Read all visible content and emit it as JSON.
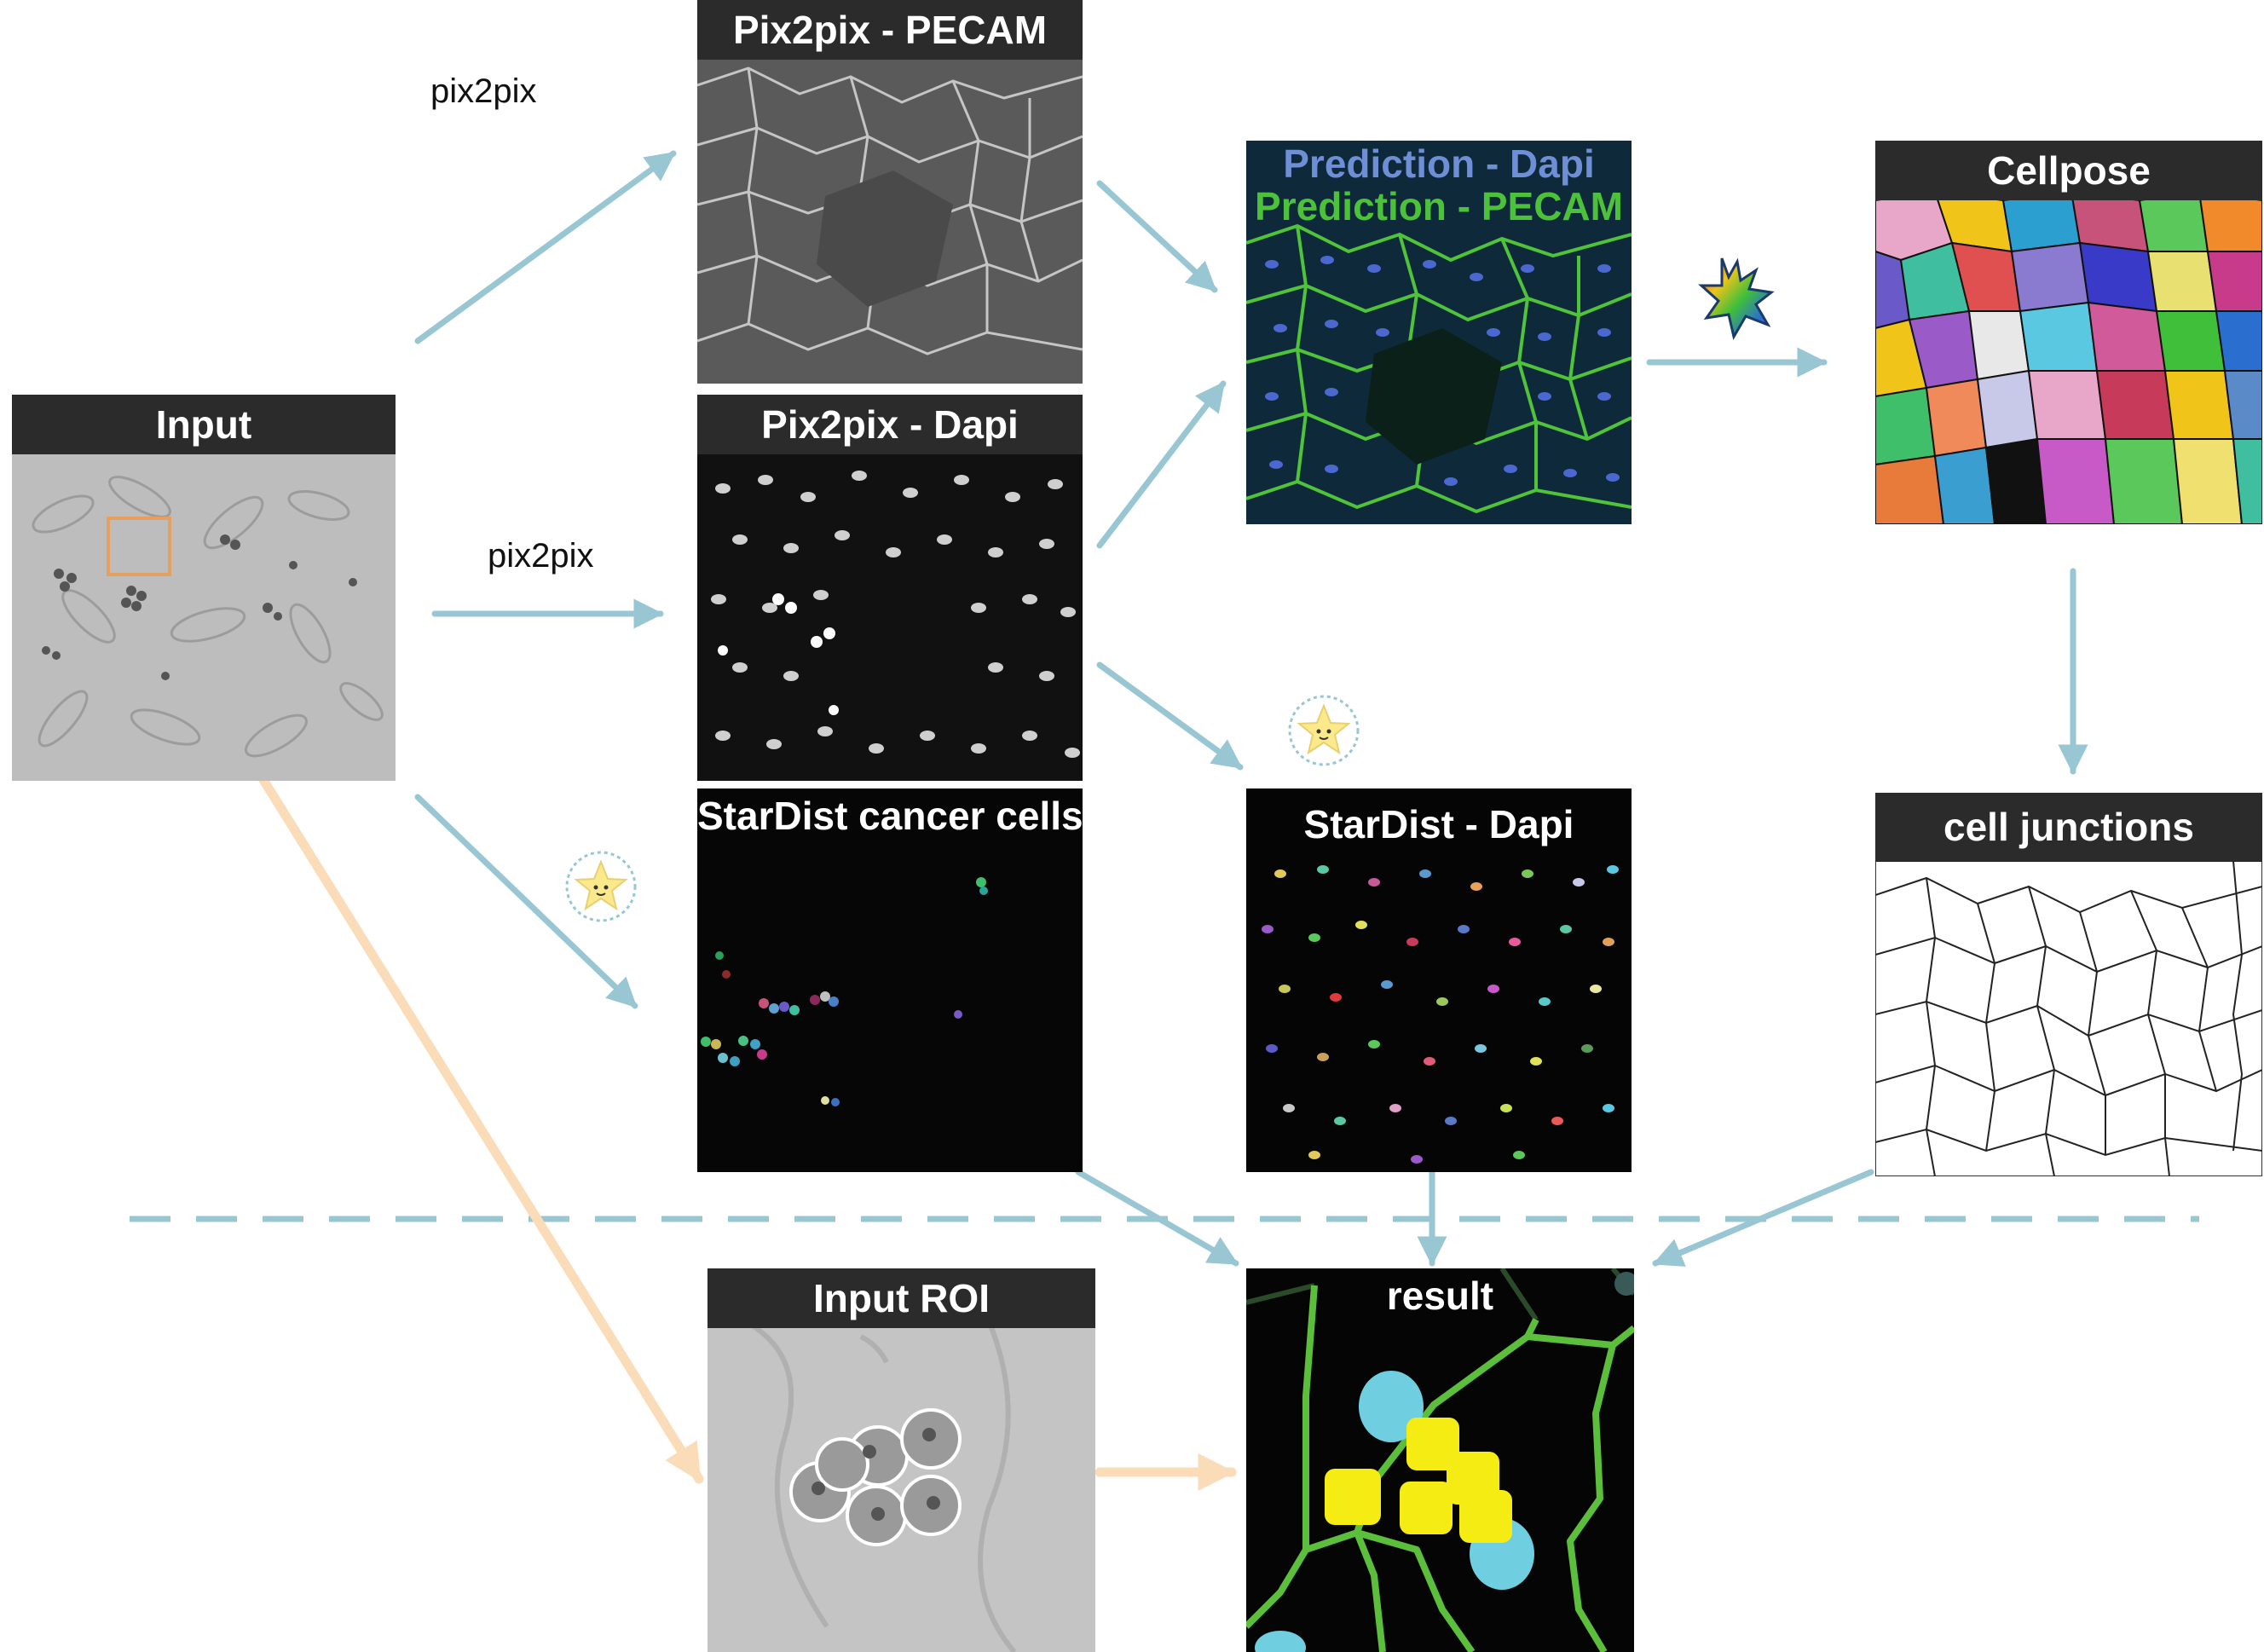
{
  "panels": {
    "input": {
      "title": "Input"
    },
    "pecam": {
      "title": "Pix2pix - PECAM"
    },
    "dapi": {
      "title": "Pix2pix - Dapi"
    },
    "stardist_cancer": {
      "title": "StarDist cancer cells"
    },
    "prediction": {
      "title_dapi": "Prediction - Dapi",
      "title_pecam": "Prediction - PECAM"
    },
    "stardist_dapi": {
      "title": "StarDist - Dapi"
    },
    "cellpose": {
      "title": "Cellpose"
    },
    "junctions": {
      "title": "cell junctions"
    },
    "roi": {
      "title": "Input ROI"
    },
    "result": {
      "title": "result"
    }
  },
  "flow_labels": {
    "top": "pix2pix",
    "middle": "pix2pix"
  },
  "colors": {
    "arrow_blue": "#98c6d2",
    "arrow_orange": "#fbdcb8",
    "roi_box": "#e3a05e",
    "title_bar": "#2b2b2b",
    "prediction_dapi_text": "#6e8fd6",
    "prediction_pecam_text": "#4cc23a",
    "junction_green": "#5cbf3c",
    "nucleus_cyan": "#6fcfe0",
    "cancer_yellow": "#f5ec14"
  },
  "icons": [
    "stardist-star-icon",
    "cellpose-cell-icon"
  ]
}
